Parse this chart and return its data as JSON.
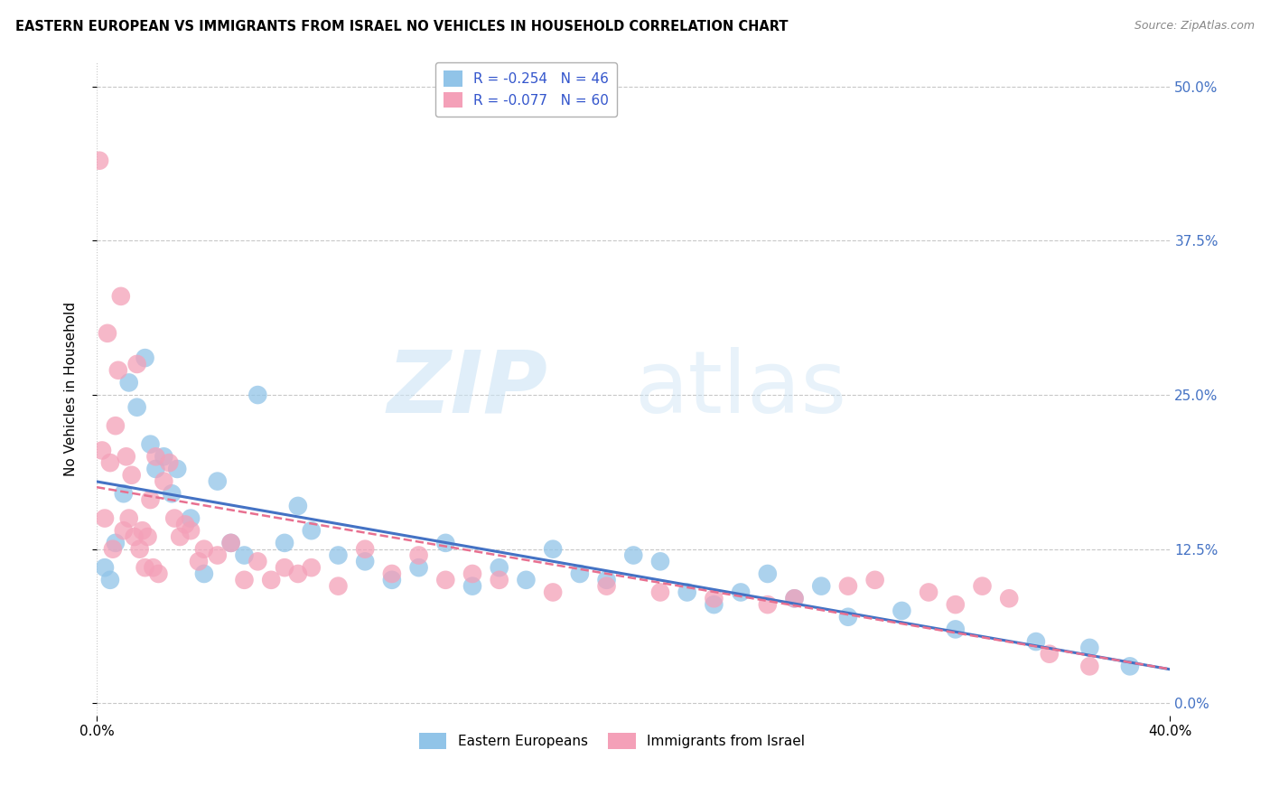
{
  "title": "EASTERN EUROPEAN VS IMMIGRANTS FROM ISRAEL NO VEHICLES IN HOUSEHOLD CORRELATION CHART",
  "source": "Source: ZipAtlas.com",
  "ylabel": "No Vehicles in Household",
  "ytick_vals": [
    0.0,
    12.5,
    25.0,
    37.5,
    50.0
  ],
  "xlim": [
    0.0,
    40.0
  ],
  "ylim": [
    -1.0,
    52.0
  ],
  "legend_label1": "Eastern Europeans",
  "legend_label2": "Immigrants from Israel",
  "r1": -0.254,
  "n1": 46,
  "r2": -0.077,
  "n2": 60,
  "color1": "#91C4E8",
  "color2": "#F4A0B8",
  "line_color1": "#4472C4",
  "line_color2": "#E87090",
  "eastern_european_x": [
    0.3,
    0.5,
    0.7,
    1.0,
    1.2,
    1.5,
    1.8,
    2.0,
    2.2,
    2.5,
    2.8,
    3.0,
    3.5,
    4.0,
    4.5,
    5.0,
    5.5,
    6.0,
    7.0,
    7.5,
    8.0,
    9.0,
    10.0,
    11.0,
    12.0,
    13.0,
    14.0,
    15.0,
    16.0,
    17.0,
    18.0,
    19.0,
    20.0,
    21.0,
    22.0,
    23.0,
    24.0,
    25.0,
    26.0,
    27.0,
    28.0,
    30.0,
    32.0,
    35.0,
    37.0,
    38.5
  ],
  "eastern_european_y": [
    11.0,
    10.0,
    13.0,
    17.0,
    26.0,
    24.0,
    28.0,
    21.0,
    19.0,
    20.0,
    17.0,
    19.0,
    15.0,
    10.5,
    18.0,
    13.0,
    12.0,
    25.0,
    13.0,
    16.0,
    14.0,
    12.0,
    11.5,
    10.0,
    11.0,
    13.0,
    9.5,
    11.0,
    10.0,
    12.5,
    10.5,
    10.0,
    12.0,
    11.5,
    9.0,
    8.0,
    9.0,
    10.5,
    8.5,
    9.5,
    7.0,
    7.5,
    6.0,
    5.0,
    4.5,
    3.0
  ],
  "israel_x": [
    0.1,
    0.2,
    0.3,
    0.4,
    0.5,
    0.6,
    0.7,
    0.8,
    0.9,
    1.0,
    1.1,
    1.2,
    1.3,
    1.4,
    1.5,
    1.6,
    1.7,
    1.8,
    1.9,
    2.0,
    2.1,
    2.2,
    2.3,
    2.5,
    2.7,
    2.9,
    3.1,
    3.3,
    3.5,
    3.8,
    4.0,
    4.5,
    5.0,
    5.5,
    6.0,
    6.5,
    7.0,
    7.5,
    8.0,
    9.0,
    10.0,
    11.0,
    12.0,
    13.0,
    14.0,
    15.0,
    17.0,
    19.0,
    21.0,
    23.0,
    25.0,
    26.0,
    28.0,
    29.0,
    31.0,
    32.0,
    33.0,
    34.0,
    35.5,
    37.0
  ],
  "israel_y": [
    44.0,
    20.5,
    15.0,
    30.0,
    19.5,
    12.5,
    22.5,
    27.0,
    33.0,
    14.0,
    20.0,
    15.0,
    18.5,
    13.5,
    27.5,
    12.5,
    14.0,
    11.0,
    13.5,
    16.5,
    11.0,
    20.0,
    10.5,
    18.0,
    19.5,
    15.0,
    13.5,
    14.5,
    14.0,
    11.5,
    12.5,
    12.0,
    13.0,
    10.0,
    11.5,
    10.0,
    11.0,
    10.5,
    11.0,
    9.5,
    12.5,
    10.5,
    12.0,
    10.0,
    10.5,
    10.0,
    9.0,
    9.5,
    9.0,
    8.5,
    8.0,
    8.5,
    9.5,
    10.0,
    9.0,
    8.0,
    9.5,
    8.5,
    4.0,
    3.0
  ]
}
